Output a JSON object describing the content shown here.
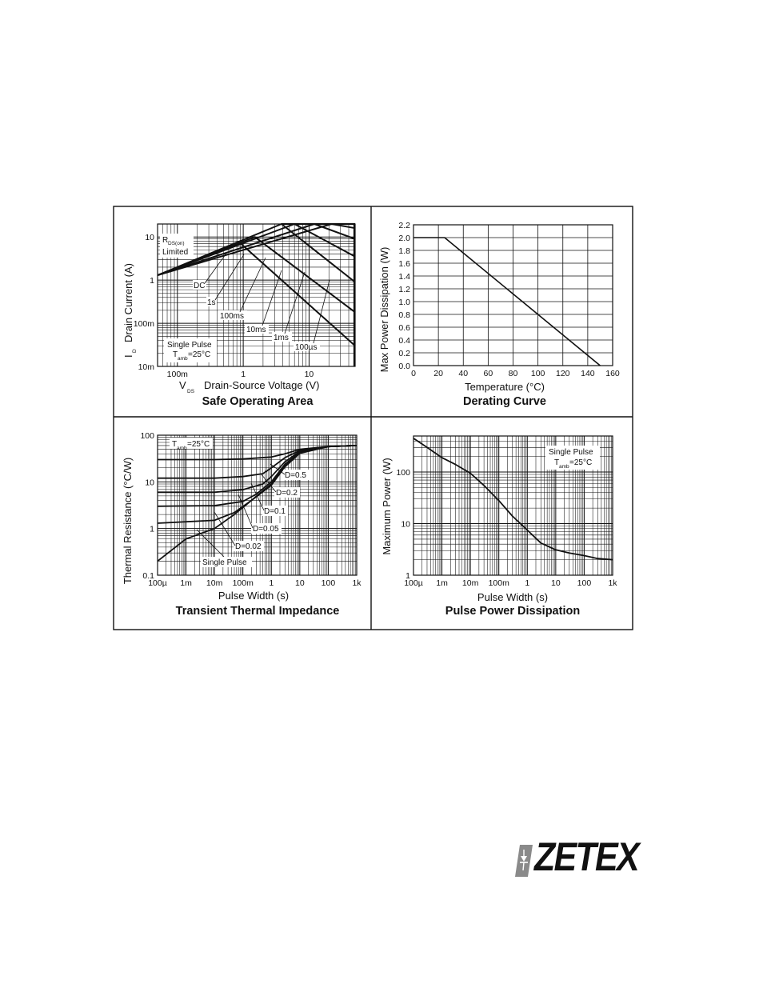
{
  "brand": {
    "logo_text": "ZETEX",
    "logo_icon": "zetex-diode-mark-icon"
  },
  "chart_data": [
    {
      "type": "line",
      "title": "Safe Operating Area",
      "xlabel_symbol": "V",
      "xlabel_sub": "DS",
      "xlabel": "Drain-Source Voltage (V)",
      "ylabel_symbol": "I",
      "ylabel_sub": "D",
      "ylabel": "Drain Current (A)",
      "xscale": "log",
      "yscale": "log",
      "xlim": [
        0.05,
        50
      ],
      "ylim": [
        0.01,
        20
      ],
      "xticks": [
        0.1,
        1,
        10
      ],
      "xtick_labels": [
        "100m",
        "1",
        "10"
      ],
      "yticks": [
        0.01,
        0.1,
        1,
        10
      ],
      "ytick_labels": [
        "10m",
        "100m",
        "1",
        "10"
      ],
      "grid": true,
      "series": [
        {
          "name": "DC",
          "x": [
            0.05,
            0.9,
            50
          ],
          "y": [
            1.3,
            7.2,
            0.03
          ]
        },
        {
          "name": "1s",
          "x": [
            0.05,
            1.5,
            50
          ],
          "y": [
            1.3,
            10,
            0.18
          ]
        },
        {
          "name": "100ms",
          "x": [
            0.05,
            3.8,
            50
          ],
          "y": [
            1.3,
            20,
            0.9
          ]
        },
        {
          "name": "10ms",
          "x": [
            0.05,
            6,
            50
          ],
          "y": [
            1.3,
            20,
            3.5
          ]
        },
        {
          "name": "1ms",
          "x": [
            0.05,
            12,
            50
          ],
          "y": [
            1.3,
            20,
            9
          ]
        },
        {
          "name": "100µs",
          "x": [
            0.05,
            22,
            50
          ],
          "y": [
            1.3,
            20,
            16
          ]
        }
      ],
      "vertical_limit_x": 50,
      "annotations": {
        "rds_symbol": "R",
        "rds_sub": "DS(on)",
        "rds_limited": "Limited",
        "dc": "DC",
        "t1s": "1s",
        "t100ms": "100ms",
        "t10ms": "10ms",
        "t1ms": "1ms",
        "t100us": "100µs",
        "single_pulse": "Single Pulse",
        "tamb_symbol": "T",
        "tamb_sub": "amb",
        "tamb_value": "=25°C"
      }
    },
    {
      "type": "line",
      "title": "Derating Curve",
      "xlabel": "Temperature (°C)",
      "ylabel": "Max Power Dissipation (W)",
      "xlim": [
        0,
        160
      ],
      "ylim": [
        0,
        2.2
      ],
      "xticks": [
        0,
        20,
        40,
        60,
        80,
        100,
        120,
        140,
        160
      ],
      "xtick_labels": [
        "0",
        "20",
        "40",
        "60",
        "80",
        "100",
        "120",
        "140",
        "160"
      ],
      "yticks": [
        0,
        0.2,
        0.4,
        0.6,
        0.8,
        1.0,
        1.2,
        1.4,
        1.6,
        1.8,
        2.0,
        2.2
      ],
      "ytick_labels": [
        "0.0",
        "0.2",
        "0.4",
        "0.6",
        "0.8",
        "1.0",
        "1.2",
        "1.4",
        "1.6",
        "1.8",
        "2.0",
        "2.2"
      ],
      "grid": true,
      "series": [
        {
          "x": [
            0,
            25,
            150
          ],
          "y": [
            2.0,
            2.0,
            0.0
          ]
        }
      ]
    },
    {
      "type": "line",
      "title": "Transient Thermal Impedance",
      "xlabel": "Pulse Width (s)",
      "ylabel": "Thermal Resistance (°C/W)",
      "xscale": "log",
      "yscale": "log",
      "xlim": [
        0.0001,
        1000
      ],
      "ylim": [
        0.1,
        100
      ],
      "xticks": [
        0.0001,
        0.001,
        0.01,
        0.1,
        1,
        10,
        100,
        1000
      ],
      "xtick_labels": [
        "100µ",
        "1m",
        "10m",
        "100m",
        "1",
        "10",
        "100",
        "1k"
      ],
      "yticks": [
        0.1,
        1,
        10,
        100
      ],
      "ytick_labels": [
        "0.1",
        "1",
        "10",
        "100"
      ],
      "grid": true,
      "series": [
        {
          "name": "D=0.5",
          "x": [
            0.0001,
            0.01,
            0.1,
            1,
            3,
            10,
            100,
            1000
          ],
          "y": [
            30,
            30,
            31,
            34,
            40,
            50,
            57,
            60
          ]
        },
        {
          "name": "D=0.2",
          "x": [
            0.0001,
            0.01,
            0.1,
            0.5,
            1,
            3,
            10,
            100,
            1000
          ],
          "y": [
            12,
            12,
            13,
            15,
            20,
            33,
            47,
            57,
            60
          ]
        },
        {
          "name": "D=0.1",
          "x": [
            0.0001,
            0.01,
            0.1,
            0.5,
            1,
            3,
            10,
            100,
            1000
          ],
          "y": [
            6,
            6,
            6.8,
            9,
            13,
            27,
            45,
            57,
            60
          ]
        },
        {
          "name": "D=0.05",
          "x": [
            0.0001,
            0.01,
            0.1,
            0.3,
            1,
            3,
            10,
            100,
            1000
          ],
          "y": [
            3,
            3.1,
            3.8,
            5.5,
            10,
            24,
            43,
            57,
            60
          ]
        },
        {
          "name": "D=0.02",
          "x": [
            0.0001,
            0.01,
            0.05,
            0.2,
            1,
            3,
            10,
            100,
            1000
          ],
          "y": [
            1.3,
            1.5,
            2.2,
            4,
            9,
            22,
            42,
            57,
            60
          ]
        },
        {
          "name": "Single Pulse",
          "x": [
            0.0001,
            0.001,
            0.01,
            0.05,
            0.2,
            1,
            3,
            10,
            100,
            1000
          ],
          "y": [
            0.2,
            0.6,
            1.0,
            2.0,
            4.0,
            8.5,
            21,
            41,
            57,
            60
          ]
        }
      ],
      "annotations": {
        "tamb_symbol": "T",
        "tamb_sub": "amb",
        "tamb_value": "=25°C",
        "d05": "D=0.5",
        "d02": "D=0.2",
        "d01": "D=0.1",
        "d005": "D=0.05",
        "d002": "D=0.02",
        "single": "Single Pulse"
      }
    },
    {
      "type": "line",
      "title": "Pulse Power Dissipation",
      "xlabel": "Pulse Width (s)",
      "ylabel": "Maximum Power (W)",
      "xscale": "log",
      "yscale": "log",
      "xlim": [
        0.0001,
        1000
      ],
      "ylim": [
        1,
        500
      ],
      "xticks": [
        0.0001,
        0.001,
        0.01,
        0.1,
        1,
        10,
        100,
        1000
      ],
      "xtick_labels": [
        "100µ",
        "1m",
        "10m",
        "100m",
        "1",
        "10",
        "100",
        "1k"
      ],
      "yticks": [
        1,
        10,
        100
      ],
      "ytick_labels": [
        "1",
        "10",
        "100"
      ],
      "grid": true,
      "series": [
        {
          "name": "Single Pulse",
          "x": [
            0.0001,
            0.0003,
            0.001,
            0.003,
            0.01,
            0.03,
            0.1,
            0.3,
            1,
            3,
            10,
            30,
            100,
            300,
            1000
          ],
          "y": [
            450,
            300,
            190,
            140,
            95,
            55,
            28,
            14,
            7.5,
            4.2,
            3.1,
            2.7,
            2.4,
            2.1,
            2.0
          ]
        }
      ],
      "annotations": {
        "single_pulse": "Single Pulse",
        "tamb_symbol": "T",
        "tamb_sub": "amb",
        "tamb_value": "=25°C"
      }
    }
  ]
}
